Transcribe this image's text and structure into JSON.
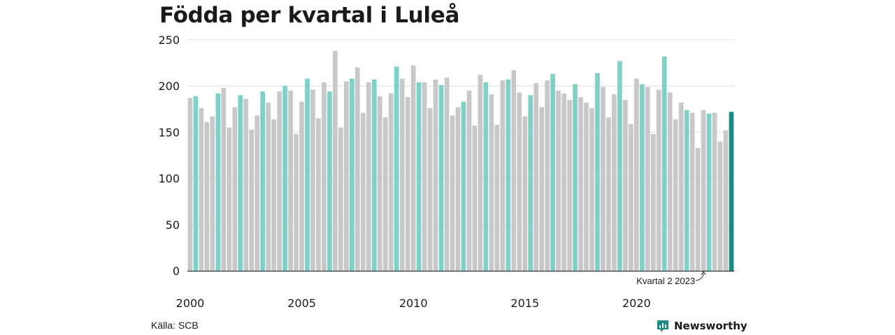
{
  "chart_data": {
    "type": "bar",
    "title": "Födda per kvartal i Luleå",
    "ylim": [
      0,
      250
    ],
    "y_ticks": [
      0,
      50,
      100,
      150,
      200,
      250
    ],
    "x_tick_labels": [
      "2000",
      "2005",
      "2010",
      "2015",
      "2020"
    ],
    "grid": true,
    "start": "2000 kvartal 1",
    "values": [
      187,
      189,
      176,
      161,
      167,
      192,
      198,
      155,
      177,
      190,
      186,
      153,
      168,
      194,
      182,
      164,
      194,
      200,
      195,
      148,
      183,
      208,
      196,
      165,
      204,
      194,
      238,
      155,
      205,
      208,
      220,
      171,
      204,
      207,
      189,
      166,
      192,
      221,
      208,
      188,
      222,
      204,
      204,
      176,
      207,
      201,
      209,
      168,
      177,
      183,
      195,
      157,
      212,
      204,
      191,
      158,
      206,
      207,
      217,
      193,
      167,
      190,
      203,
      177,
      206,
      213,
      195,
      192,
      185,
      202,
      188,
      182,
      176,
      214,
      199,
      166,
      191,
      227,
      185,
      159,
      208,
      202,
      199,
      148,
      196,
      232,
      193,
      164,
      182,
      174,
      171,
      133,
      174,
      170,
      171,
      140,
      152,
      172
    ],
    "annotation": "Kvartal 2 2023"
  },
  "colors": {
    "bar_default": "#c8c8c8",
    "bar_q2": "#7fd1c8",
    "bar_latest": "#1b8a80",
    "grid": "#dddddd",
    "axis": "#333333"
  },
  "footer": {
    "source": "Källa: SCB",
    "brand_icon": "newsworthy-logo-icon",
    "brand_name": "Newsworthy"
  }
}
